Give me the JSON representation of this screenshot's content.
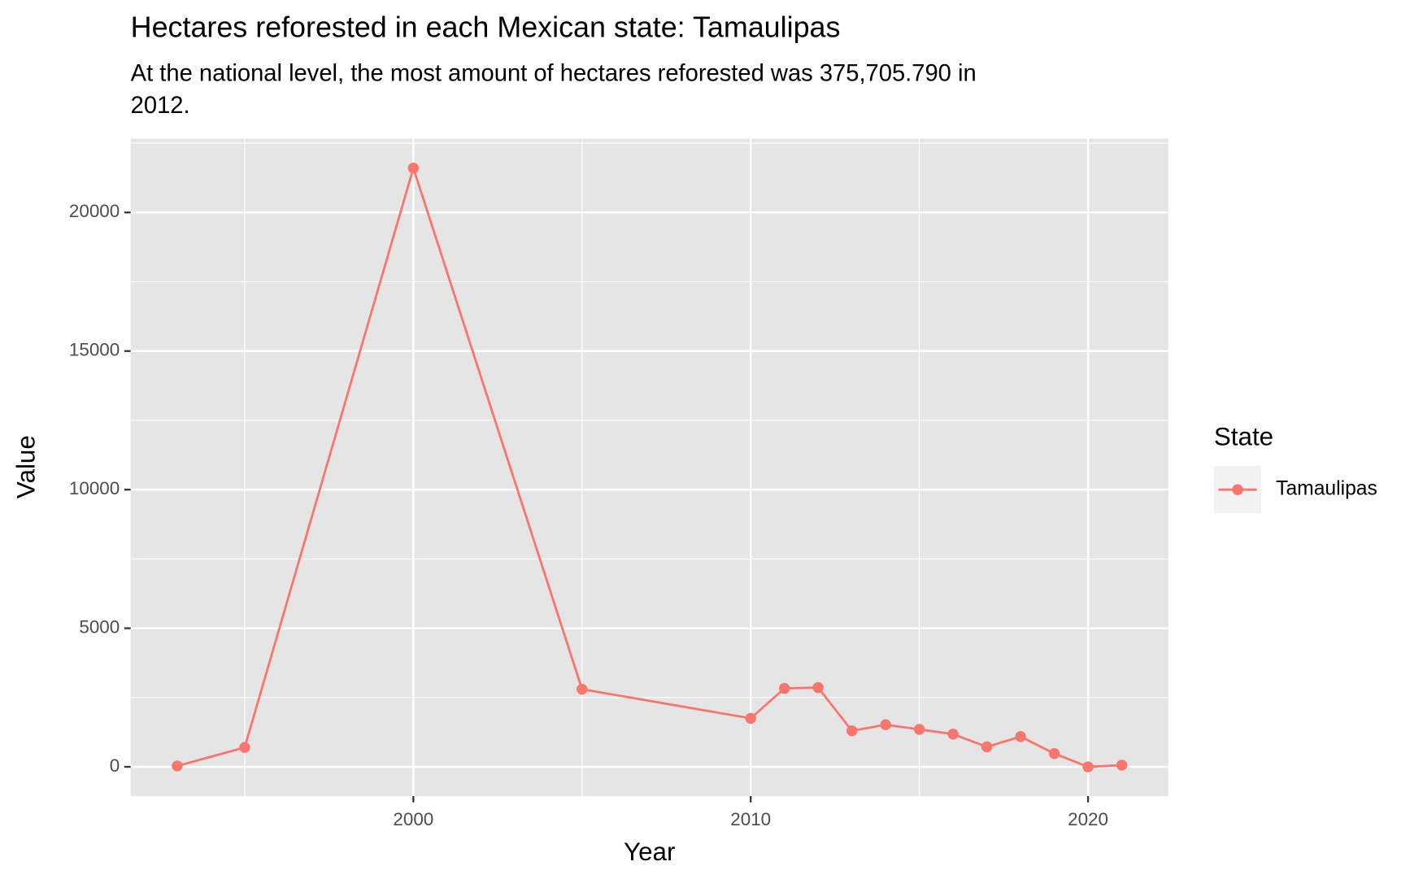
{
  "chart_data": {
    "type": "line",
    "title": "Hectares reforested in each Mexican state: Tamaulipas",
    "subtitle": [
      "At the national level, the most amount of hectares reforested was 375,705.790 in",
      "2012."
    ],
    "x_label": "Year",
    "y_label": "Value",
    "x": [
      1993,
      1995,
      2000,
      2005,
      2010,
      2011,
      2012,
      2013,
      2014,
      2015,
      2016,
      2017,
      2018,
      2019,
      2020,
      2021
    ],
    "series": [
      {
        "name": "Tamaulipas",
        "color": "#f8766d",
        "values": [
          30,
          700,
          21600,
          2800,
          1750,
          2830,
          2860,
          1300,
          1520,
          1350,
          1180,
          720,
          1090,
          480,
          0,
          60
        ]
      }
    ],
    "xlim": [
      1991.62,
      2022.38
    ],
    "xticks": [
      2000,
      2010,
      2020
    ],
    "ylim": [
      -1053,
      22664
    ],
    "yticks": [
      0,
      5000,
      10000,
      15000,
      20000
    ],
    "grid": true,
    "legend_title": "State",
    "legend_position": "right"
  }
}
